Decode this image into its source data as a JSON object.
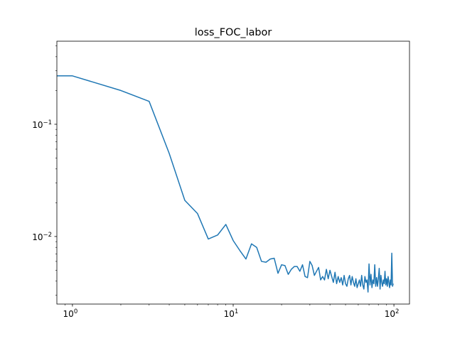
{
  "chart_data": {
    "type": "line",
    "title": "loss_FOC_labor",
    "xlabel": "",
    "ylabel": "",
    "xscale": "log",
    "yscale": "log",
    "xlim": [
      0.8,
      125
    ],
    "ylim": [
      0.0025,
      0.55
    ],
    "grid": false,
    "legend": "none",
    "x_ticks": [
      {
        "value": 1,
        "label": "10",
        "exp": "0"
      },
      {
        "value": 10,
        "label": "10",
        "exp": "1"
      },
      {
        "value": 100,
        "label": "10",
        "exp": "2"
      }
    ],
    "y_ticks": [
      {
        "value": 0.1,
        "label": "10",
        "exp": "−1"
      },
      {
        "value": 0.01,
        "label": "10",
        "exp": "−2"
      }
    ],
    "series": [
      {
        "color": "#1f77b4",
        "x": [
          0.8,
          1,
          2,
          3,
          4,
          5,
          6,
          7,
          8,
          9,
          10,
          11,
          12,
          13,
          14,
          15,
          16,
          17,
          18,
          19,
          20,
          21,
          22,
          23,
          24,
          25,
          26,
          27,
          28,
          29,
          30,
          31,
          32,
          33,
          34,
          35,
          36,
          37,
          38,
          39,
          40,
          41,
          42,
          43,
          44,
          45,
          46,
          47,
          48,
          49,
          50,
          51,
          52,
          53,
          54,
          55,
          56,
          57,
          58,
          59,
          60,
          61,
          62,
          63,
          64,
          65,
          66,
          67,
          68,
          69,
          70,
          71,
          72,
          73,
          74,
          75,
          76,
          77,
          78,
          79,
          80,
          81,
          82,
          83,
          84,
          85,
          86,
          87,
          88,
          89,
          90,
          91,
          92,
          93,
          94,
          95,
          96,
          97,
          98,
          99
        ],
        "y": [
          0.27,
          0.27,
          0.2,
          0.16,
          0.055,
          0.021,
          0.016,
          0.0095,
          0.0103,
          0.0128,
          0.0092,
          0.0075,
          0.0063,
          0.0086,
          0.008,
          0.006,
          0.0059,
          0.0063,
          0.0064,
          0.0047,
          0.0056,
          0.0055,
          0.0046,
          0.0051,
          0.0054,
          0.0054,
          0.0049,
          0.0056,
          0.0044,
          0.0043,
          0.006,
          0.0055,
          0.0045,
          0.0049,
          0.0053,
          0.0041,
          0.0044,
          0.0041,
          0.0051,
          0.0042,
          0.005,
          0.0044,
          0.0039,
          0.0048,
          0.0038,
          0.0044,
          0.0039,
          0.0043,
          0.0037,
          0.0045,
          0.0038,
          0.0036,
          0.0042,
          0.0045,
          0.0037,
          0.0044,
          0.0039,
          0.0036,
          0.0042,
          0.0035,
          0.0038,
          0.0041,
          0.0036,
          0.0045,
          0.0037,
          0.0034,
          0.0044,
          0.0039,
          0.0041,
          0.0032,
          0.0057,
          0.0037,
          0.0046,
          0.0035,
          0.0041,
          0.0038,
          0.0056,
          0.0036,
          0.0043,
          0.0036,
          0.0042,
          0.0052,
          0.0034,
          0.0045,
          0.0039,
          0.0036,
          0.0041,
          0.0038,
          0.0049,
          0.0037,
          0.0042,
          0.0036,
          0.0044,
          0.0039,
          0.0035,
          0.0041,
          0.0037,
          0.0071,
          0.0036,
          0.0038
        ]
      }
    ]
  }
}
